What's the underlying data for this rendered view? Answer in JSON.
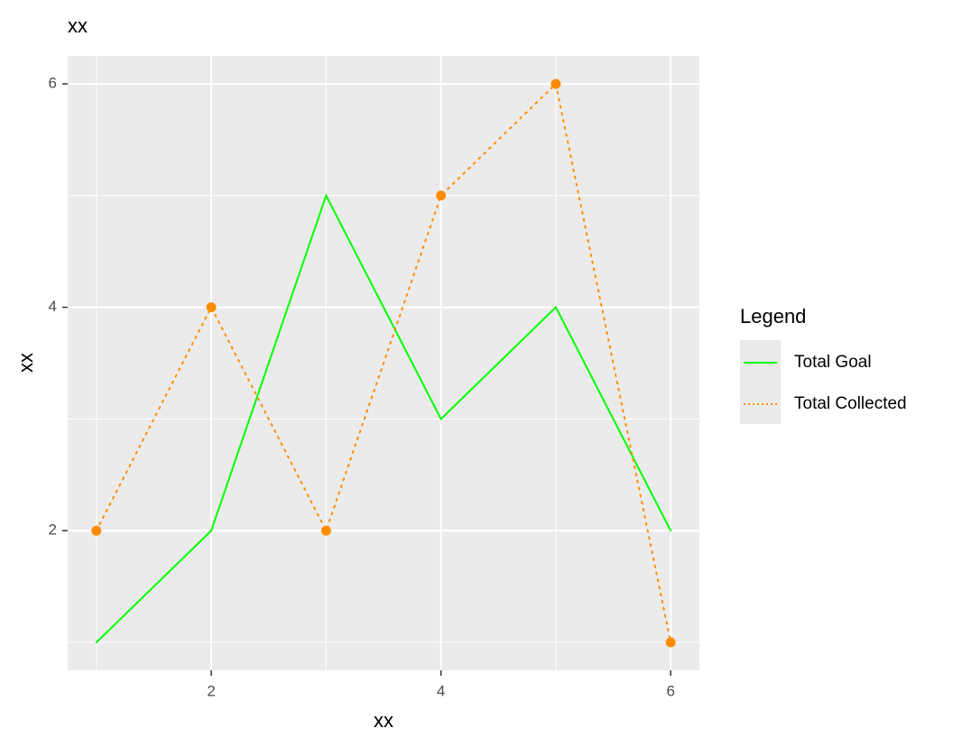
{
  "chart_data": {
    "type": "line",
    "title": "xx",
    "xlabel": "xx",
    "ylabel": "xx",
    "x": [
      1,
      2,
      3,
      4,
      5,
      6
    ],
    "series": [
      {
        "name": "Total Goal",
        "color": "#00ff00",
        "linestyle": "solid",
        "markers": false,
        "values": [
          1,
          2,
          5,
          3,
          4,
          2
        ]
      },
      {
        "name": "Total Collected",
        "color": "#ff8c00",
        "linestyle": "dotted",
        "markers": true,
        "values": [
          2,
          4,
          2,
          5,
          6,
          1
        ]
      }
    ],
    "xlim": [
      0.75,
      6.25
    ],
    "ylim": [
      0.75,
      6.25
    ],
    "xticks": [
      2,
      4,
      6
    ],
    "yticks": [
      2,
      4,
      6
    ],
    "x_minor_ticks": [
      1,
      3,
      5
    ],
    "y_minor_ticks": [
      1,
      3,
      5
    ],
    "grid": true,
    "legend_title": "Legend",
    "legend_position": "right"
  }
}
